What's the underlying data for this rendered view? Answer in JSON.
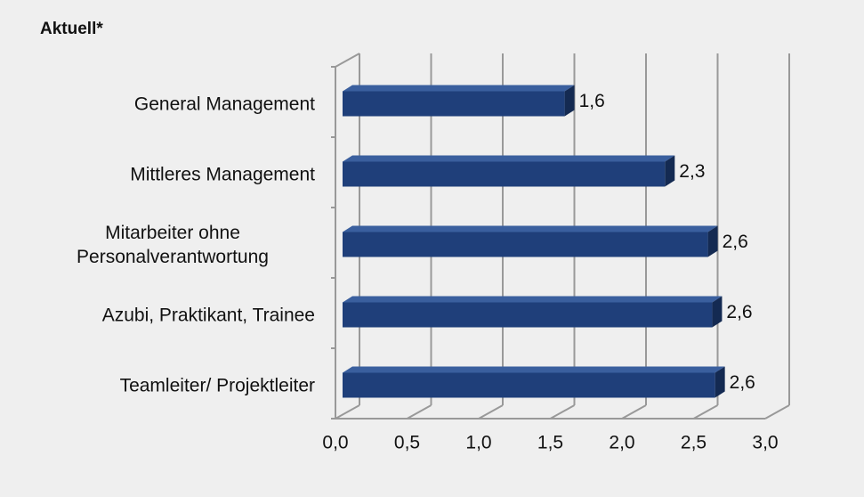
{
  "chart_data": {
    "type": "bar",
    "orientation": "horizontal",
    "title": "Aktuell*",
    "categories": [
      "General Management",
      "Mittleres Management",
      "Mitarbeiter ohne Personalverantwortung",
      "Azubi, Praktikant, Trainee",
      "Teamleiter/ Projektleiter"
    ],
    "values": [
      1.6,
      2.3,
      2.6,
      2.63,
      2.65
    ],
    "value_labels": [
      "1,6",
      "2,3",
      "2,6",
      "2,6",
      "2,6"
    ],
    "color": "#1f3f7a",
    "xlim": [
      0,
      3
    ],
    "xticks": [
      {
        "value": 0,
        "label": "0,0"
      },
      {
        "value": 0.5,
        "label": "0,5"
      },
      {
        "value": 1,
        "label": "1,0"
      },
      {
        "value": 1.5,
        "label": "1,5"
      },
      {
        "value": 2,
        "label": "2,0"
      },
      {
        "value": 2.5,
        "label": "2,5"
      },
      {
        "value": 3,
        "label": "3,0"
      }
    ],
    "grid": true
  }
}
